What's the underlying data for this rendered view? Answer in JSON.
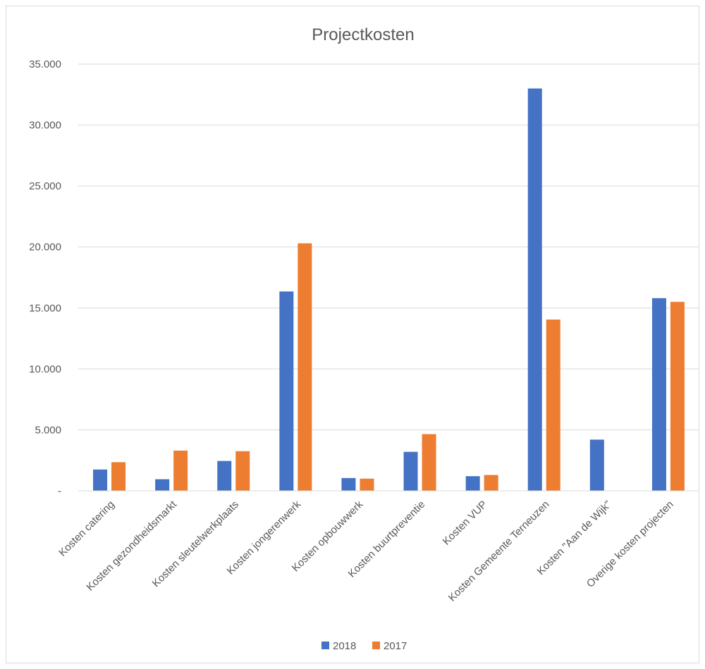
{
  "chart_data": {
    "type": "bar",
    "title": "Projectkosten",
    "categories": [
      "Kosten catering",
      "Kosten gezondheidsmarkt",
      "Kosten sleutelwerkplaats",
      "Kosten jongerenwerk",
      "Kosten opbouwwerk",
      "Kosten buurtpreventie",
      "Kosten VUP",
      "Kosten Gemeente Terneuzen",
      "Kosten \"Aan de Wijk\"",
      "Overige kosten projecten"
    ],
    "series": [
      {
        "name": "2018",
        "color": "#4472C4",
        "values": [
          1750,
          950,
          2450,
          16350,
          1050,
          3200,
          1200,
          33000,
          4200,
          15800
        ]
      },
      {
        "name": "2017",
        "color": "#ED7D31",
        "values": [
          2350,
          3300,
          3250,
          20300,
          1000,
          4650,
          1300,
          14050,
          0,
          15500
        ]
      }
    ],
    "ylim": [
      0,
      35000
    ],
    "yticks": [
      0,
      5000,
      10000,
      15000,
      20000,
      25000,
      30000,
      35000
    ],
    "ytick_labels": [
      "-",
      "5.000",
      "10.000",
      "15.000",
      "20.000",
      "25.000",
      "30.000",
      "35.000"
    ],
    "xlabel": "",
    "ylabel": "",
    "grid": true,
    "legend_position": "bottom"
  }
}
